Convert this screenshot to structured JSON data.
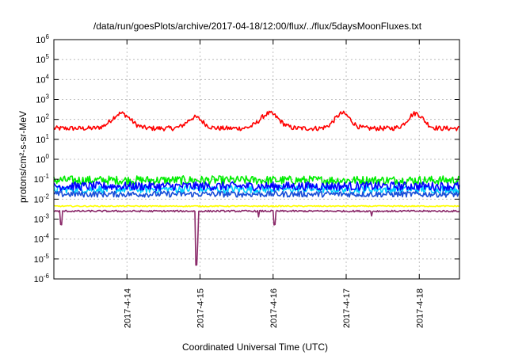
{
  "chart_data": {
    "type": "line",
    "title": "/data/run/goesPlots/archive/2017-04-18/12:00/flux/../flux/5daysMoonFluxes.txt",
    "xlabel": "Coordinated Universal Time (UTC)",
    "ylabel": "protons/cm²-s-sr-MeV",
    "yscale": "log",
    "ylim_exp": [
      -6,
      6
    ],
    "y_ticks": [
      {
        "base": "10",
        "exp": "-6"
      },
      {
        "base": "10",
        "exp": "-5"
      },
      {
        "base": "10",
        "exp": "-4"
      },
      {
        "base": "10",
        "exp": "-3"
      },
      {
        "base": "10",
        "exp": "-2"
      },
      {
        "base": "10",
        "exp": "-1"
      },
      {
        "base": "10",
        "exp": "0"
      },
      {
        "base": "10",
        "exp": "1"
      },
      {
        "base": "10",
        "exp": "2"
      },
      {
        "base": "10",
        "exp": "3"
      },
      {
        "base": "10",
        "exp": "4"
      },
      {
        "base": "10",
        "exp": "5"
      },
      {
        "base": "10",
        "exp": "6"
      }
    ],
    "x_range_days": [
      0,
      5.55
    ],
    "x_ticks": [
      {
        "label": "2017-4-14",
        "day": 1.0
      },
      {
        "label": "2017-4-15",
        "day": 2.0
      },
      {
        "label": "2017-4-16",
        "day": 3.0
      },
      {
        "label": "2017-4-17",
        "day": 4.0
      },
      {
        "label": "2017-4-18",
        "day": 5.0
      }
    ],
    "grid": true,
    "legend": "none",
    "series": [
      {
        "color": "#ff0000",
        "level_exp": 1.55,
        "noise": 0.12,
        "dips": [],
        "bumps": [
          {
            "day": 0.92,
            "h": 0.75,
            "w": 0.18
          },
          {
            "day": 1.93,
            "h": 0.55,
            "w": 0.15
          },
          {
            "day": 2.95,
            "h": 0.75,
            "w": 0.18
          },
          {
            "day": 3.95,
            "h": 0.75,
            "w": 0.15
          },
          {
            "day": 4.95,
            "h": 0.75,
            "w": 0.15
          }
        ]
      },
      {
        "color": "#00ee00",
        "level_exp": -1.05,
        "noise": 0.22,
        "dips": [],
        "bumps": []
      },
      {
        "color": "#00ccff",
        "level_exp": -1.5,
        "noise": 0.2,
        "dips": [],
        "bumps": []
      },
      {
        "color": "#0000ff",
        "level_exp": -1.35,
        "noise": 0.22,
        "dips": [],
        "bumps": []
      },
      {
        "color": "#1a4fd8",
        "level_exp": -1.75,
        "noise": 0.15,
        "dips": [],
        "bumps": []
      },
      {
        "color": "#ffff00",
        "level_exp": -2.35,
        "noise": 0.03,
        "dips": [],
        "bumps": []
      },
      {
        "color": "#8b2a6a",
        "level_exp": -2.6,
        "noise": 0.04,
        "dips": [
          {
            "day": 0.1,
            "depth": 0.7
          },
          {
            "day": 1.95,
            "depth": 2.7
          },
          {
            "day": 1.97,
            "depth": 1.6
          },
          {
            "day": 2.8,
            "depth": 0.3
          },
          {
            "day": 3.02,
            "depth": 0.7
          },
          {
            "day": 4.35,
            "depth": 0.25
          }
        ],
        "bumps": []
      }
    ]
  }
}
